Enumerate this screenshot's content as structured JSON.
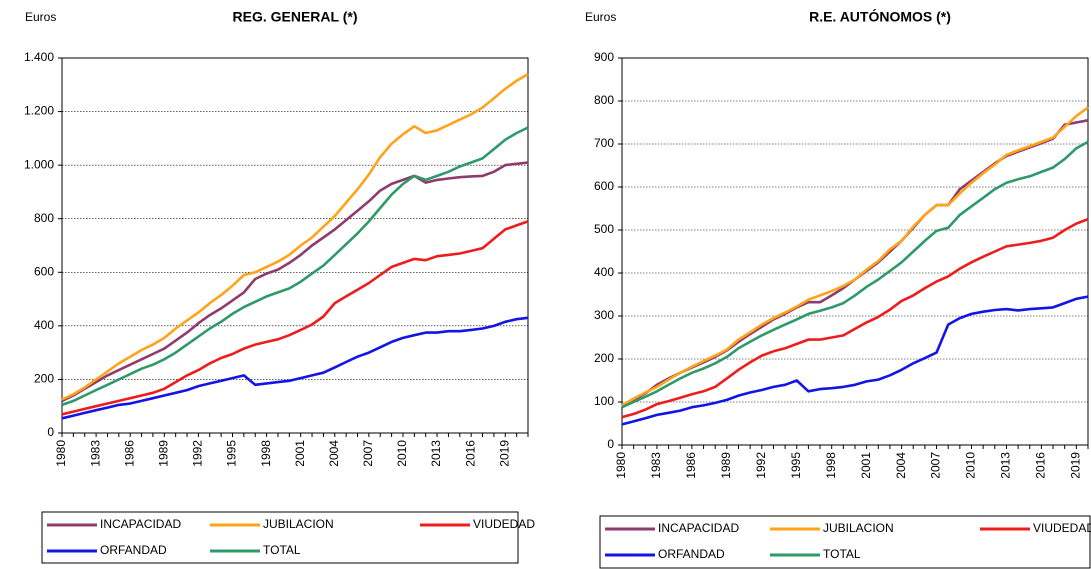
{
  "chart_data": [
    {
      "type": "line",
      "title": "REG. GENERAL (*)",
      "y_label": "Euros",
      "x": [
        1980,
        1981,
        1982,
        1983,
        1984,
        1985,
        1986,
        1987,
        1988,
        1989,
        1990,
        1991,
        1992,
        1993,
        1994,
        1995,
        1996,
        1997,
        1998,
        1999,
        2000,
        2001,
        2002,
        2003,
        2004,
        2005,
        2006,
        2007,
        2008,
        2009,
        2010,
        2011,
        2012,
        2013,
        2014,
        2015,
        2016,
        2017,
        2018,
        2019,
        2020,
        2021
      ],
      "xlim": [
        1980,
        2021
      ],
      "xticks": [
        1980,
        1983,
        1986,
        1989,
        1992,
        1995,
        1998,
        2001,
        2004,
        2007,
        2010,
        2013,
        2016,
        2019
      ],
      "ylim": [
        0,
        1400
      ],
      "yticks": [
        0,
        200,
        400,
        600,
        800,
        {
          "value": 1000,
          "label": "1.000"
        },
        {
          "value": 1200,
          "label": "1.200"
        },
        {
          "value": 1400,
          "label": "1.400"
        }
      ],
      "grid": true,
      "series": [
        {
          "name": "INCAPACIDAD",
          "color": "#8e3b6e",
          "values": [
            120,
            140,
            165,
            190,
            215,
            235,
            255,
            275,
            295,
            315,
            345,
            375,
            410,
            440,
            465,
            495,
            525,
            575,
            595,
            610,
            635,
            665,
            700,
            730,
            760,
            795,
            830,
            865,
            905,
            930,
            945,
            960,
            935,
            945,
            950,
            955,
            958,
            960,
            975,
            1000,
            1005,
            1010
          ]
        },
        {
          "name": "JUBILACION",
          "color": "#ffa31a",
          "values": [
            125,
            145,
            170,
            200,
            230,
            260,
            285,
            310,
            330,
            355,
            390,
            420,
            450,
            485,
            515,
            550,
            590,
            600,
            620,
            640,
            665,
            700,
            730,
            770,
            810,
            860,
            910,
            965,
            1030,
            1080,
            1115,
            1145,
            1120,
            1130,
            1150,
            1170,
            1190,
            1215,
            1250,
            1285,
            1315,
            1340
          ]
        },
        {
          "name": "VIUDEDAD",
          "color": "#ee1c1c",
          "values": [
            70,
            80,
            90,
            100,
            110,
            120,
            130,
            140,
            150,
            165,
            190,
            215,
            235,
            260,
            280,
            295,
            315,
            330,
            340,
            350,
            365,
            385,
            405,
            435,
            485,
            510,
            535,
            560,
            590,
            620,
            635,
            650,
            645,
            660,
            665,
            670,
            680,
            690,
            725,
            760,
            775,
            790
          ]
        },
        {
          "name": "ORFANDAD",
          "color": "#1414e6",
          "values": [
            55,
            65,
            75,
            85,
            95,
            105,
            110,
            120,
            130,
            140,
            150,
            160,
            175,
            185,
            195,
            205,
            215,
            180,
            185,
            190,
            195,
            205,
            215,
            225,
            245,
            265,
            285,
            300,
            320,
            340,
            355,
            365,
            375,
            375,
            380,
            380,
            385,
            390,
            400,
            415,
            425,
            430
          ]
        },
        {
          "name": "TOTAL",
          "color": "#2e9a6a",
          "values": [
            105,
            120,
            140,
            160,
            180,
            200,
            220,
            240,
            255,
            275,
            300,
            330,
            360,
            390,
            415,
            445,
            470,
            490,
            510,
            525,
            540,
            565,
            595,
            625,
            665,
            705,
            745,
            790,
            840,
            890,
            930,
            960,
            945,
            960,
            975,
            995,
            1010,
            1025,
            1060,
            1095,
            1120,
            1140
          ]
        }
      ]
    },
    {
      "type": "line",
      "title": "R.E. AUTÓNOMOS (*)",
      "y_label": "Euros",
      "x": [
        1980,
        1981,
        1982,
        1983,
        1984,
        1985,
        1986,
        1987,
        1988,
        1989,
        1990,
        1991,
        1992,
        1993,
        1994,
        1995,
        1996,
        1997,
        1998,
        1999,
        2000,
        2001,
        2002,
        2003,
        2004,
        2005,
        2006,
        2007,
        2008,
        2009,
        2010,
        2011,
        2012,
        2013,
        2014,
        2015,
        2016,
        2017,
        2018,
        2019,
        2020
      ],
      "xlim": [
        1980,
        2020
      ],
      "xticks": [
        1980,
        1983,
        1986,
        1989,
        1992,
        1995,
        1998,
        2001,
        2004,
        2007,
        2010,
        2013,
        2016,
        2019
      ],
      "ylim": [
        0,
        900
      ],
      "yticks": [
        0,
        100,
        200,
        300,
        400,
        500,
        600,
        700,
        800,
        900
      ],
      "grid": true,
      "series": [
        {
          "name": "INCAPACIDAD",
          "color": "#8e3b6e",
          "values": [
            90,
            105,
            120,
            140,
            155,
            168,
            180,
            192,
            205,
            220,
            240,
            258,
            275,
            292,
            305,
            320,
            332,
            332,
            348,
            365,
            385,
            405,
            425,
            450,
            475,
            505,
            535,
            558,
            558,
            595,
            615,
            635,
            655,
            672,
            682,
            692,
            702,
            712,
            745,
            750,
            755
          ]
        },
        {
          "name": "JUBILACION",
          "color": "#ffa31a",
          "values": [
            92,
            108,
            122,
            135,
            152,
            168,
            182,
            195,
            208,
            222,
            245,
            262,
            280,
            295,
            308,
            322,
            338,
            348,
            358,
            370,
            385,
            408,
            428,
            455,
            475,
            508,
            535,
            558,
            558,
            585,
            610,
            632,
            652,
            675,
            685,
            695,
            705,
            715,
            740,
            765,
            785
          ]
        },
        {
          "name": "VIUDEDAD",
          "color": "#ee1c1c",
          "values": [
            65,
            72,
            82,
            95,
            102,
            110,
            118,
            125,
            135,
            155,
            175,
            192,
            208,
            218,
            225,
            235,
            245,
            245,
            250,
            255,
            270,
            285,
            298,
            315,
            335,
            348,
            365,
            380,
            392,
            410,
            425,
            438,
            450,
            462,
            466,
            470,
            475,
            482,
            500,
            515,
            525
          ]
        },
        {
          "name": "ORFANDAD",
          "color": "#1414e6",
          "values": [
            48,
            55,
            62,
            70,
            75,
            80,
            88,
            92,
            98,
            105,
            115,
            122,
            128,
            135,
            140,
            150,
            125,
            130,
            132,
            135,
            140,
            148,
            152,
            162,
            175,
            190,
            202,
            215,
            280,
            295,
            305,
            310,
            314,
            316,
            313,
            316,
            318,
            320,
            330,
            340,
            345
          ]
        },
        {
          "name": "TOTAL",
          "color": "#2e9a6a",
          "values": [
            88,
            100,
            112,
            125,
            140,
            155,
            168,
            178,
            190,
            205,
            225,
            240,
            255,
            268,
            280,
            292,
            305,
            312,
            320,
            330,
            348,
            368,
            385,
            405,
            425,
            450,
            475,
            498,
            505,
            535,
            555,
            575,
            595,
            610,
            618,
            625,
            635,
            645,
            665,
            690,
            705
          ]
        }
      ]
    }
  ]
}
